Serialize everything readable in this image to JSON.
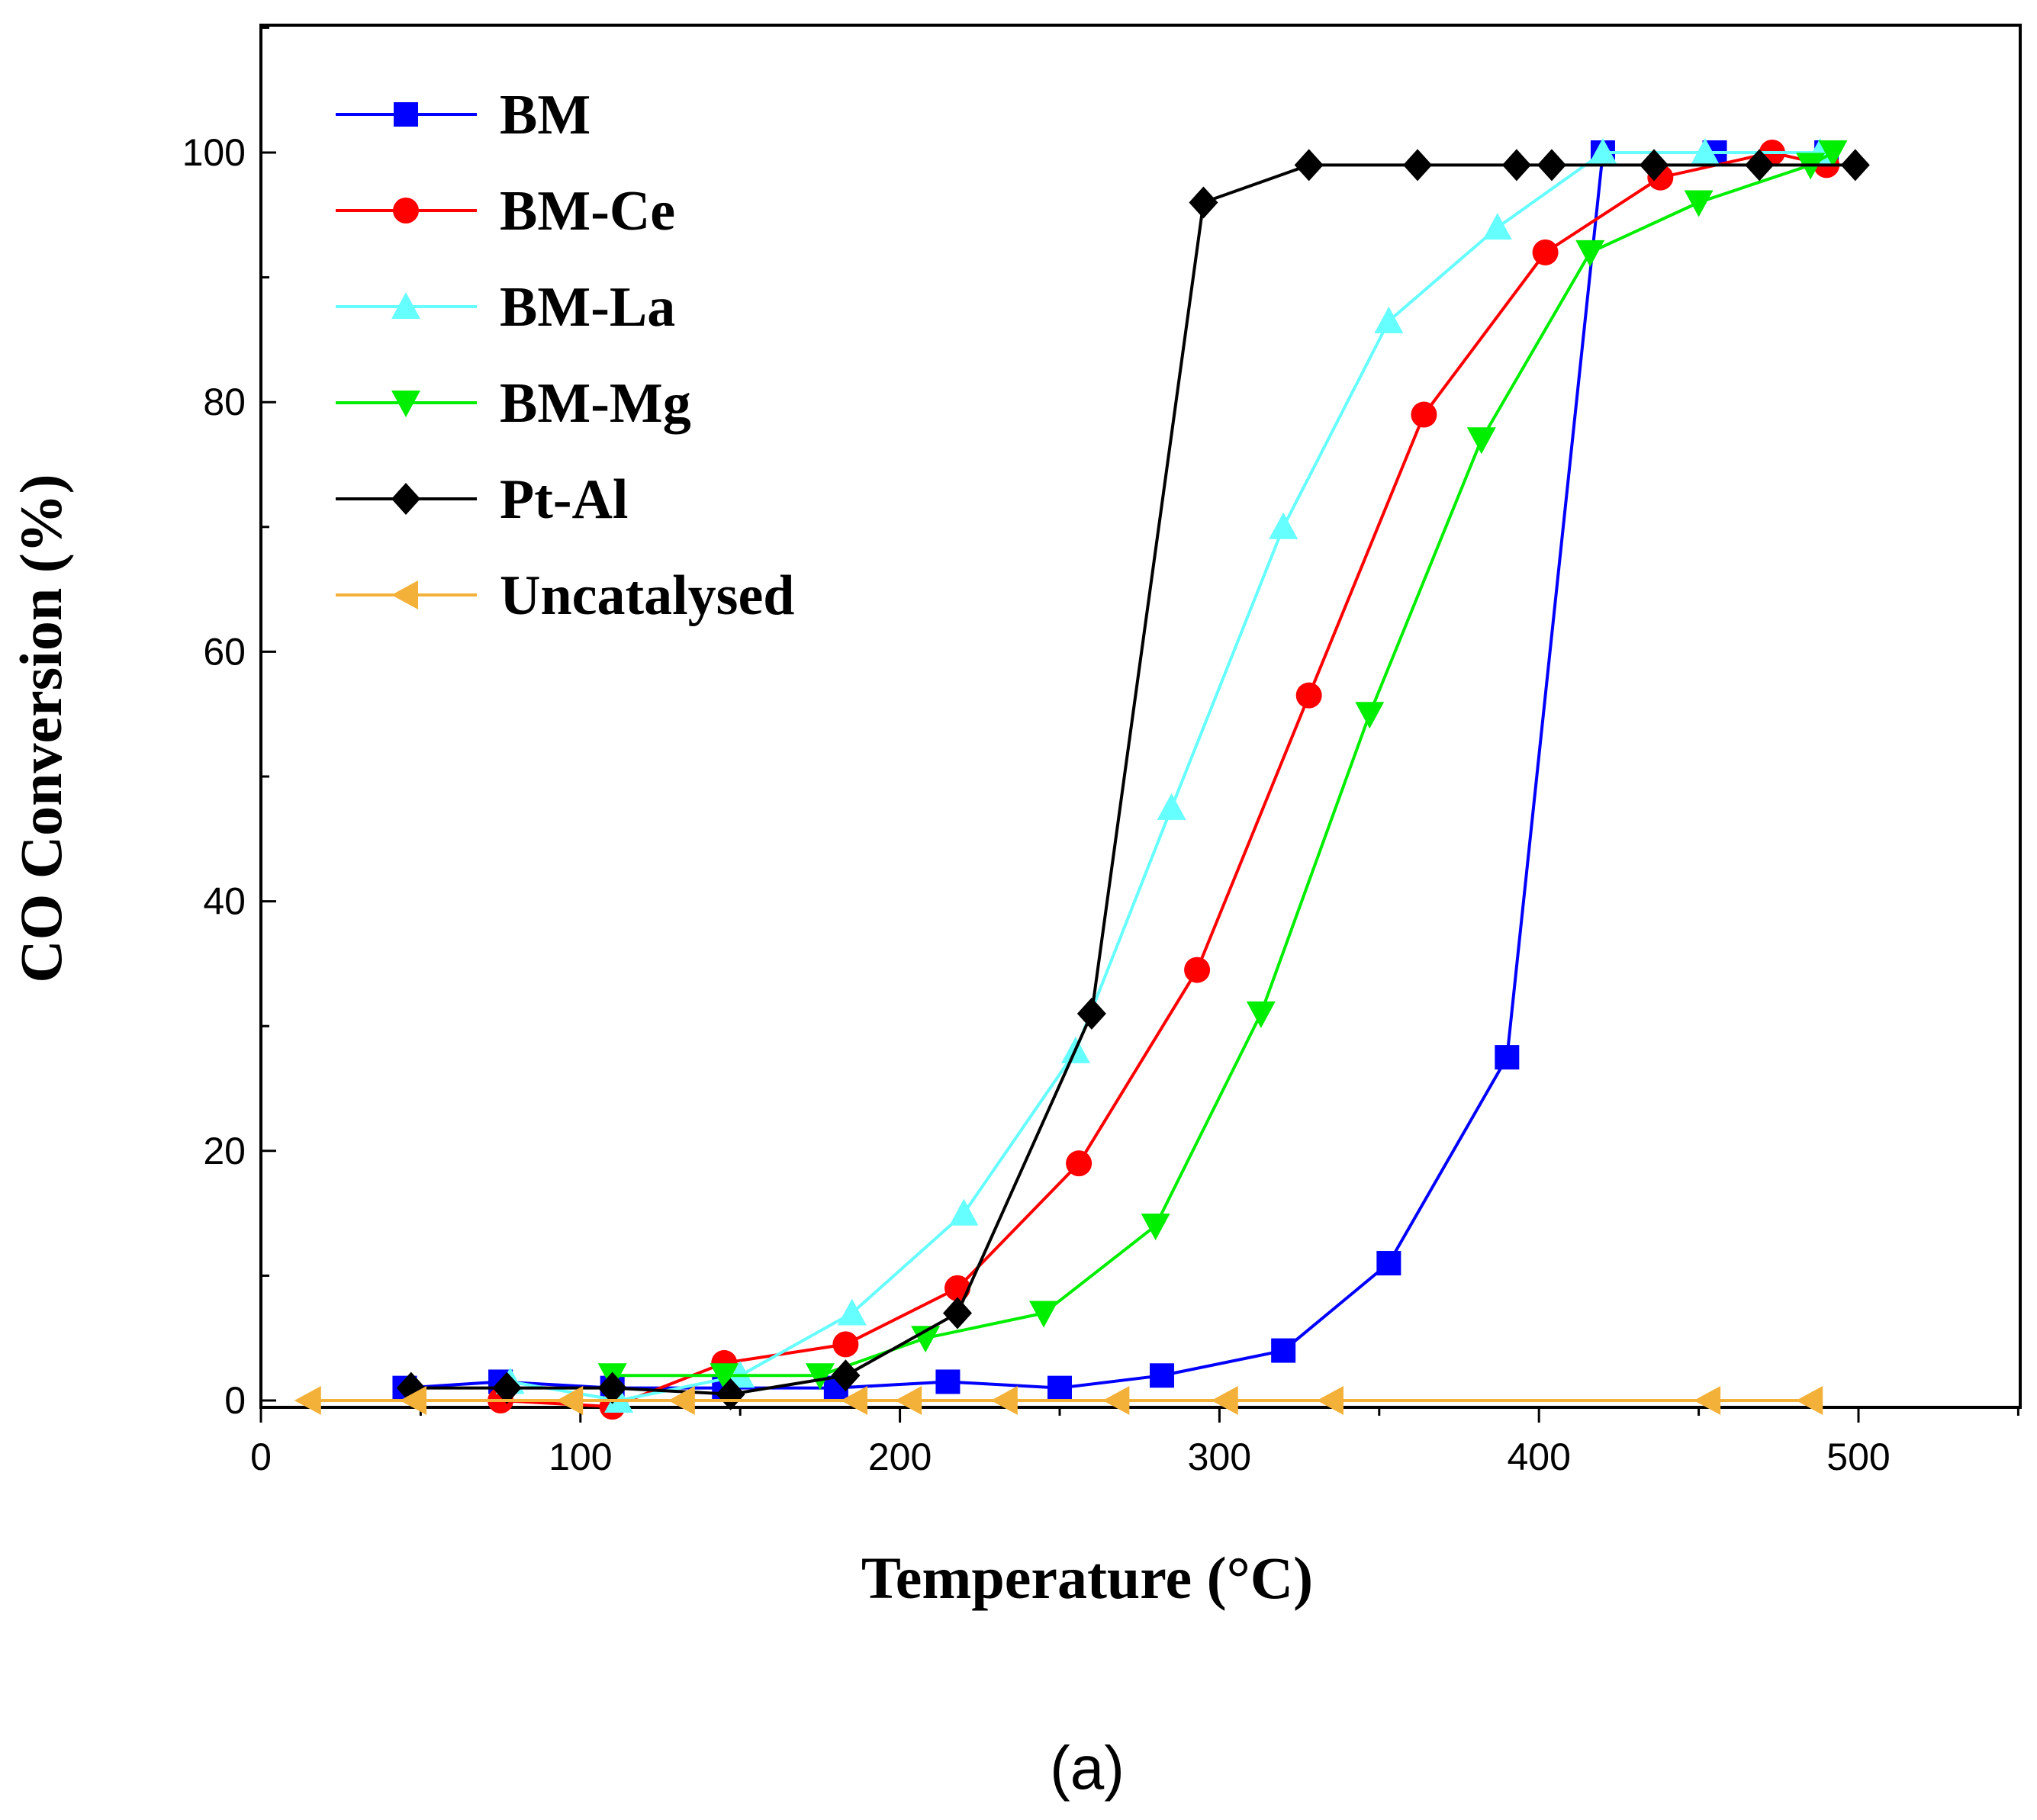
{
  "chart_data": {
    "type": "line",
    "title": "",
    "xlabel": "Temperature (°C)",
    "ylabel": "CO Conversion (%)",
    "xlim": [
      0,
      550
    ],
    "ylim": [
      -5,
      110
    ],
    "xticks": [
      "0",
      "100",
      "200",
      "300",
      "400",
      "500"
    ],
    "yticks": [
      "0",
      "20",
      "40",
      "60",
      "80",
      "100"
    ],
    "legend_position": "top-left",
    "caption": "(a)",
    "series": [
      {
        "name": "BM",
        "color": "#0000ff",
        "marker": "square",
        "x": [
          45,
          75,
          110,
          145,
          180,
          215,
          250,
          282,
          320,
          353,
          390,
          420,
          455,
          490
        ],
        "y": [
          1,
          1.5,
          1,
          1,
          1,
          1.5,
          1,
          2,
          4,
          11,
          27.5,
          100,
          100,
          100
        ]
      },
      {
        "name": "BM-Ce",
        "color": "#ff0000",
        "marker": "circle",
        "x": [
          75,
          110,
          145,
          183,
          218,
          256,
          293,
          328,
          364,
          402,
          438,
          473,
          490
        ],
        "y": [
          0,
          -0.5,
          3,
          4.5,
          9,
          19,
          34.5,
          56.5,
          79,
          92,
          98,
          100,
          99
        ]
      },
      {
        "name": "BM-La",
        "color": "#66ffff",
        "marker": "triangle-up",
        "x": [
          78,
          112,
          150,
          185,
          220,
          255,
          285,
          320,
          353,
          387,
          420,
          452,
          488
        ],
        "y": [
          1.5,
          0,
          2,
          7,
          15,
          28,
          47.5,
          70,
          86.5,
          94,
          100,
          100,
          100
        ]
      },
      {
        "name": "BM-Mg",
        "color": "#00ee00",
        "marker": "triangle-down",
        "x": [
          110,
          145,
          175,
          208,
          245,
          280,
          313,
          347,
          382,
          416,
          450,
          485,
          492
        ],
        "y": [
          2,
          2,
          2,
          5,
          7,
          14,
          31,
          55,
          77,
          92,
          96,
          99,
          100
        ]
      },
      {
        "name": "Pt-Al",
        "color": "#000000",
        "marker": "diamond",
        "x": [
          47,
          77,
          110,
          147,
          183,
          218,
          260,
          295,
          328,
          362,
          393,
          404,
          436,
          469,
          499
        ],
        "y": [
          1,
          1,
          1,
          0.5,
          2,
          7,
          31,
          96,
          99,
          99,
          99,
          99,
          99,
          99,
          99
        ]
      },
      {
        "name": "Uncatalysed",
        "color": "#f4b13a",
        "marker": "triangle-left",
        "x": [
          15,
          48,
          97,
          132,
          186,
          203,
          233,
          268,
          302,
          335,
          453,
          485
        ],
        "y": [
          0,
          0,
          0,
          0,
          0,
          0,
          0,
          0,
          0,
          0,
          0,
          0
        ]
      }
    ]
  }
}
